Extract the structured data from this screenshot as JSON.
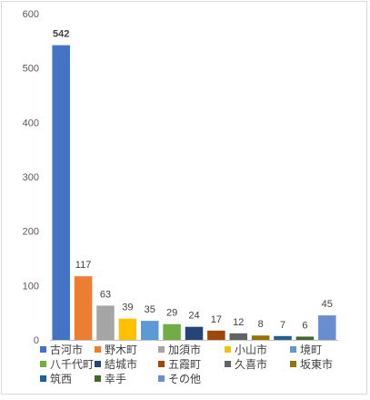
{
  "chart_data": {
    "type": "bar",
    "title": "",
    "xlabel": "",
    "ylabel": "",
    "ylim": [
      0,
      600
    ],
    "yticks": [
      0,
      100,
      200,
      300,
      400,
      500,
      600
    ],
    "grid": false,
    "legend_position": "bottom",
    "categories": [
      "古河市",
      "野木町",
      "加須市",
      "小山市",
      "境町",
      "八千代町",
      "結城市",
      "五霞町",
      "久喜市",
      "坂東市",
      "筑西",
      "幸手",
      "その他"
    ],
    "values": [
      542,
      117,
      63,
      39,
      35,
      29,
      24,
      17,
      12,
      8,
      7,
      6,
      45
    ],
    "colors": [
      "#4472c4",
      "#ed7d31",
      "#a5a5a5",
      "#ffc000",
      "#5b9bd5",
      "#70ad47",
      "#264478",
      "#9e480e",
      "#636363",
      "#997300",
      "#255e91",
      "#43682b",
      "#698ed0"
    ],
    "highlight_label_index": 0
  }
}
